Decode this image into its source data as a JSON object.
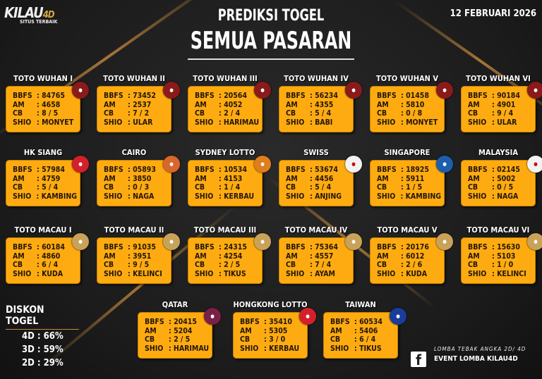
{
  "brand": {
    "name": "KILAU",
    "suffix": "4D",
    "tagline": "SITUS TERBAIK"
  },
  "date": "12 FEBRUARI 2026",
  "title": {
    "line1": "PREDIKSI TOGEL",
    "line2": "SEMUA PASARAN"
  },
  "labels": {
    "bbfs": "BBFS",
    "am": "AM",
    "cb": "CB",
    "shio": "SHIO"
  },
  "markets": [
    {
      "name": "TOTO WUHAN I",
      "bbfs": "84765",
      "am": "4658",
      "cb": "8 / 5",
      "shio": "MONYET",
      "icon": "toto-wuhan-logo-icon",
      "color": "#8b1a1a"
    },
    {
      "name": "TOTO WUHAN II",
      "bbfs": "73452",
      "am": "2537",
      "cb": "7 / 2",
      "shio": "ULAR",
      "icon": "toto-wuhan-logo-icon",
      "color": "#8b1a1a"
    },
    {
      "name": "TOTO WUHAN III",
      "bbfs": "20564",
      "am": "4052",
      "cb": "2 / 4",
      "shio": "HARIMAU",
      "icon": "toto-wuhan-logo-icon",
      "color": "#8b1a1a"
    },
    {
      "name": "TOTO WUHAN IV",
      "bbfs": "56234",
      "am": "4355",
      "cb": "5 / 4",
      "shio": "BABI",
      "icon": "toto-wuhan-logo-icon",
      "color": "#8b1a1a"
    },
    {
      "name": "TOTO WUHAN V",
      "bbfs": "01458",
      "am": "5810",
      "cb": "0 / 8",
      "shio": "MONYET",
      "icon": "toto-wuhan-logo-icon",
      "color": "#8b1a1a"
    },
    {
      "name": "TOTO WUHAN VI",
      "bbfs": "90184",
      "am": "4901",
      "cb": "9 / 4",
      "shio": "ULAR",
      "icon": "toto-wuhan-logo-icon",
      "color": "#8b1a1a"
    },
    {
      "name": "HK SIANG",
      "bbfs": "57984",
      "am": "4759",
      "cb": "5 / 4",
      "shio": "KAMBING",
      "icon": "hongkong-flower-icon",
      "color": "#d3202a"
    },
    {
      "name": "CAIRO",
      "bbfs": "05893",
      "am": "3850",
      "cb": "0 / 3",
      "shio": "NAGA",
      "icon": "cairo-pyramid-icon",
      "color": "#d9662a"
    },
    {
      "name": "SYDNEY LOTTO",
      "bbfs": "10534",
      "am": "4153",
      "cb": "1 / 4",
      "shio": "KERBAU",
      "icon": "kangaroo-icon",
      "color": "#e07d1c"
    },
    {
      "name": "SWISS",
      "bbfs": "53674",
      "am": "4456",
      "cb": "5 / 4",
      "shio": "ANJING",
      "icon": "swiss-lotto-icon",
      "color": "#f2f2f2"
    },
    {
      "name": "SINGAPORE",
      "bbfs": "18925",
      "am": "5911",
      "cb": "1 / 5",
      "shio": "KAMBING",
      "icon": "singapore-lion-icon",
      "color": "#1d5fae"
    },
    {
      "name": "MALAYSIA",
      "bbfs": "02145",
      "am": "5002",
      "cb": "0 / 5",
      "shio": "NAGA",
      "icon": "malaysia-toto-icon",
      "color": "#f2f2f2"
    },
    {
      "name": "TOTO MACAU I",
      "bbfs": "60184",
      "am": "4860",
      "cb": "6 / 4",
      "shio": "KUDA",
      "icon": "toto-macau-icon",
      "color": "#c9a25a"
    },
    {
      "name": "TOTO MACAU II",
      "bbfs": "91035",
      "am": "3951",
      "cb": "9 / 5",
      "shio": "KELINCI",
      "icon": "toto-macau-icon",
      "color": "#c9a25a"
    },
    {
      "name": "TOTO MACAU III",
      "bbfs": "24315",
      "am": "4254",
      "cb": "2 / 5",
      "shio": "TIKUS",
      "icon": "toto-macau-icon",
      "color": "#c9a25a"
    },
    {
      "name": "TOTO MACAU IV",
      "bbfs": "75364",
      "am": "4557",
      "cb": "7 / 4",
      "shio": "AYAM",
      "icon": "toto-macau-icon",
      "color": "#c9a25a"
    },
    {
      "name": "TOTO MACAU V",
      "bbfs": "20176",
      "am": "6012",
      "cb": "2 / 6",
      "shio": "KUDA",
      "icon": "toto-macau-icon",
      "color": "#c9a25a"
    },
    {
      "name": "TOTO MACAU VI",
      "bbfs": "15630",
      "am": "5103",
      "cb": "1 / 0",
      "shio": "KELINCI",
      "icon": "toto-macau-icon",
      "color": "#c9a25a"
    },
    {
      "name": "QATAR",
      "bbfs": "20415",
      "am": "5204",
      "cb": "2 / 5",
      "shio": "HARIMAU",
      "icon": "qatar-falcon-icon",
      "color": "#7a1f45"
    },
    {
      "name": "HONGKONG LOTTO",
      "bbfs": "35410",
      "am": "5305",
      "cb": "3 / 0",
      "shio": "KERBAU",
      "icon": "hongkong-flower-icon",
      "color": "#d3202a"
    },
    {
      "name": "TAIWAN",
      "bbfs": "60534",
      "am": "5406",
      "cb": "6 / 4",
      "shio": "TIKUS",
      "icon": "taiwan-sun-icon",
      "color": "#1a3c9c"
    }
  ],
  "diskon": {
    "title": "DISKON TOGEL",
    "items": [
      "4D : 66%",
      "3D : 59%",
      "2D : 29%"
    ]
  },
  "footer": {
    "line1": "LOMBA TEBAK ANGKA 2D/ 4D",
    "line2": "EVENT LOMBA KILAU4D",
    "icon": "facebook-icon"
  }
}
